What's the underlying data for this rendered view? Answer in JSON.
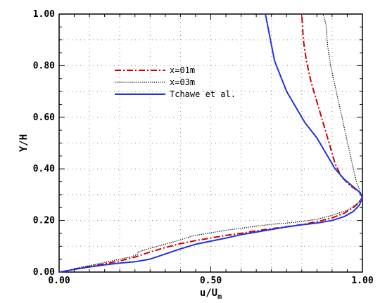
{
  "chart_data": {
    "type": "line",
    "xlabel": "u/U",
    "xlabel_sub": "m",
    "ylabel": "Y/H",
    "xlim": [
      0,
      1.0
    ],
    "ylim": [
      0,
      1.0
    ],
    "xticks": [
      "0.00",
      "0.50",
      "1.00"
    ],
    "yticks": [
      "0.00",
      "0.20",
      "0.40",
      "0.60",
      "0.80",
      "1.00"
    ],
    "grid": true,
    "legend_position": "upper-left",
    "series": [
      {
        "name": "x=01m",
        "color": "#cc0000",
        "style": "dashdot",
        "points": [
          [
            0.01,
            0.0
          ],
          [
            0.05,
            0.012
          ],
          [
            0.1,
            0.022
          ],
          [
            0.15,
            0.032
          ],
          [
            0.2,
            0.043
          ],
          [
            0.25,
            0.058
          ],
          [
            0.3,
            0.078
          ],
          [
            0.35,
            0.095
          ],
          [
            0.4,
            0.11
          ],
          [
            0.45,
            0.122
          ],
          [
            0.5,
            0.132
          ],
          [
            0.55,
            0.142
          ],
          [
            0.6,
            0.15
          ],
          [
            0.65,
            0.16
          ],
          [
            0.7,
            0.168
          ],
          [
            0.75,
            0.176
          ],
          [
            0.8,
            0.184
          ],
          [
            0.85,
            0.195
          ],
          [
            0.9,
            0.21
          ],
          [
            0.94,
            0.228
          ],
          [
            0.97,
            0.25
          ],
          [
            0.99,
            0.272
          ],
          [
            1.0,
            0.29
          ],
          [
            0.99,
            0.31
          ],
          [
            0.96,
            0.335
          ],
          [
            0.93,
            0.37
          ],
          [
            0.91,
            0.42
          ],
          [
            0.89,
            0.5
          ],
          [
            0.87,
            0.58
          ],
          [
            0.85,
            0.66
          ],
          [
            0.83,
            0.74
          ],
          [
            0.815,
            0.82
          ],
          [
            0.805,
            0.9
          ],
          [
            0.8,
            1.0
          ]
        ]
      },
      {
        "name": "x=03m",
        "color": "#000000",
        "style": "dotted",
        "points": [
          [
            0.01,
            0.0
          ],
          [
            0.05,
            0.012
          ],
          [
            0.1,
            0.025
          ],
          [
            0.15,
            0.037
          ],
          [
            0.2,
            0.05
          ],
          [
            0.24,
            0.06
          ],
          [
            0.26,
            0.07
          ],
          [
            0.26,
            0.078
          ],
          [
            0.3,
            0.092
          ],
          [
            0.35,
            0.108
          ],
          [
            0.4,
            0.125
          ],
          [
            0.44,
            0.14
          ],
          [
            0.5,
            0.152
          ],
          [
            0.55,
            0.162
          ],
          [
            0.6,
            0.17
          ],
          [
            0.65,
            0.178
          ],
          [
            0.7,
            0.185
          ],
          [
            0.75,
            0.19
          ],
          [
            0.8,
            0.196
          ],
          [
            0.85,
            0.205
          ],
          [
            0.9,
            0.22
          ],
          [
            0.95,
            0.24
          ],
          [
            0.98,
            0.262
          ],
          [
            1.0,
            0.29
          ],
          [
            0.99,
            0.32
          ],
          [
            0.98,
            0.35
          ],
          [
            0.97,
            0.4
          ],
          [
            0.955,
            0.48
          ],
          [
            0.94,
            0.56
          ],
          [
            0.925,
            0.64
          ],
          [
            0.91,
            0.72
          ],
          [
            0.895,
            0.8
          ],
          [
            0.885,
            0.88
          ],
          [
            0.88,
            0.96
          ],
          [
            0.87,
            1.0
          ]
        ]
      },
      {
        "name": "Tchawe et al.",
        "color": "#2233dd",
        "style": "solid",
        "points": [
          [
            0.0,
            0.0
          ],
          [
            0.05,
            0.01
          ],
          [
            0.1,
            0.02
          ],
          [
            0.15,
            0.028
          ],
          [
            0.2,
            0.035
          ],
          [
            0.25,
            0.04
          ],
          [
            0.3,
            0.05
          ],
          [
            0.35,
            0.07
          ],
          [
            0.4,
            0.09
          ],
          [
            0.45,
            0.108
          ],
          [
            0.5,
            0.12
          ],
          [
            0.55,
            0.132
          ],
          [
            0.6,
            0.145
          ],
          [
            0.65,
            0.155
          ],
          [
            0.7,
            0.165
          ],
          [
            0.75,
            0.175
          ],
          [
            0.8,
            0.183
          ],
          [
            0.85,
            0.19
          ],
          [
            0.9,
            0.2
          ],
          [
            0.94,
            0.215
          ],
          [
            0.97,
            0.235
          ],
          [
            0.99,
            0.26
          ],
          [
            1.0,
            0.29
          ],
          [
            0.99,
            0.31
          ],
          [
            0.97,
            0.33
          ],
          [
            0.94,
            0.36
          ],
          [
            0.91,
            0.4
          ],
          [
            0.88,
            0.46
          ],
          [
            0.85,
            0.52
          ],
          [
            0.81,
            0.58
          ],
          [
            0.78,
            0.64
          ],
          [
            0.75,
            0.7
          ],
          [
            0.73,
            0.76
          ],
          [
            0.71,
            0.82
          ],
          [
            0.7,
            0.88
          ],
          [
            0.69,
            0.94
          ],
          [
            0.68,
            1.0
          ]
        ]
      }
    ]
  }
}
